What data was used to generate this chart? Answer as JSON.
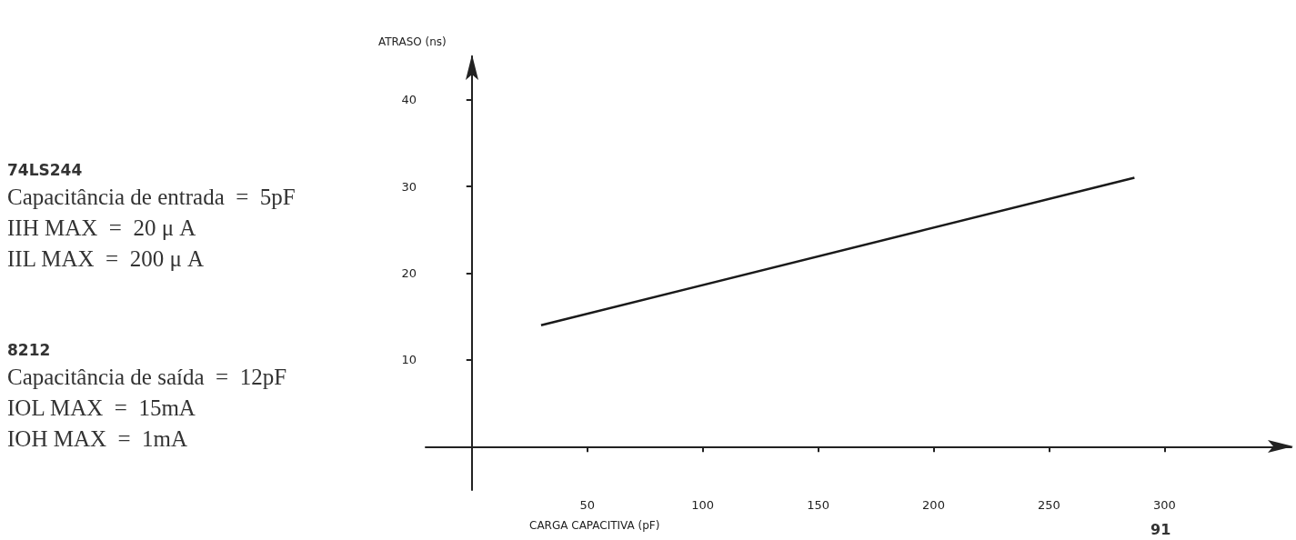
{
  "chart_data": {
    "type": "line",
    "xlabel": "CARGA CAPACITIVA (pF)",
    "ylabel": "ATRASO (ns)",
    "x": [
      30,
      287
    ],
    "values": [
      14,
      31
    ],
    "color": "#1a1a1a",
    "xlim": [
      -20,
      355
    ],
    "ylim": [
      -5,
      45
    ],
    "xticks": [
      50,
      100,
      150,
      200,
      250,
      300
    ],
    "yticks": [
      10,
      20,
      30,
      40
    ],
    "grid": false,
    "marker": "none",
    "line_style": "solid",
    "annotations": [
      "74LS244\nCapacitância de entrada  =  5pF\nIIH MAX  =  20 μ A\nIIL MAX  =  200 μ A",
      "8212\nCapacitância de saída  =  12pF\nIOL MAX  =  15mA\nIOH MAX  =  1mA",
      "91"
    ]
  }
}
